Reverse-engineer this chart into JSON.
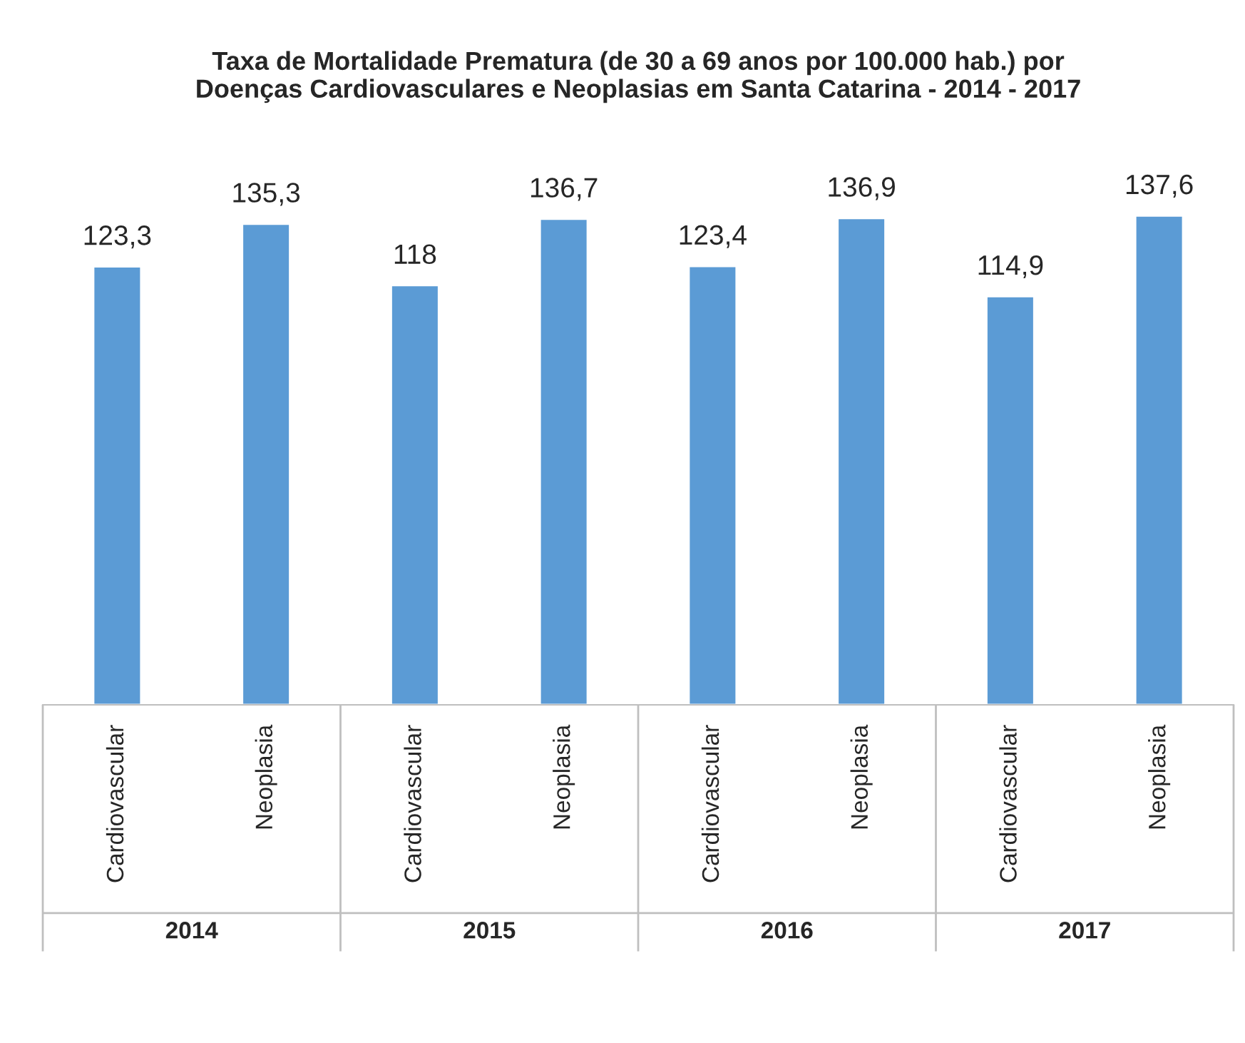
{
  "chart_data": {
    "type": "bar",
    "title": "Taxa de Mortalidade Prematura (de 30 a 69 anos por 100.000 hab.) por\nDoenças Cardiovasculares e Neoplasias em Santa Catarina - 2014 - 2017",
    "categories": [
      "Cardiovascular",
      "Neoplasia",
      "Cardiovascular",
      "Neoplasia",
      "Cardiovascular",
      "Neoplasia",
      "Cardiovascular",
      "Neoplasia"
    ],
    "values": [
      123.3,
      135.3,
      118,
      136.7,
      123.4,
      136.9,
      114.9,
      137.6
    ],
    "value_labels": [
      "123,3",
      "135,3",
      "118",
      "136,7",
      "123,4",
      "136,9",
      "114,9",
      "137,6"
    ],
    "color": "#5b9bd5",
    "tick_labels": "x",
    "grid": false,
    "annotations": [
      "2014",
      "2015",
      "2016",
      "2017"
    ]
  }
}
